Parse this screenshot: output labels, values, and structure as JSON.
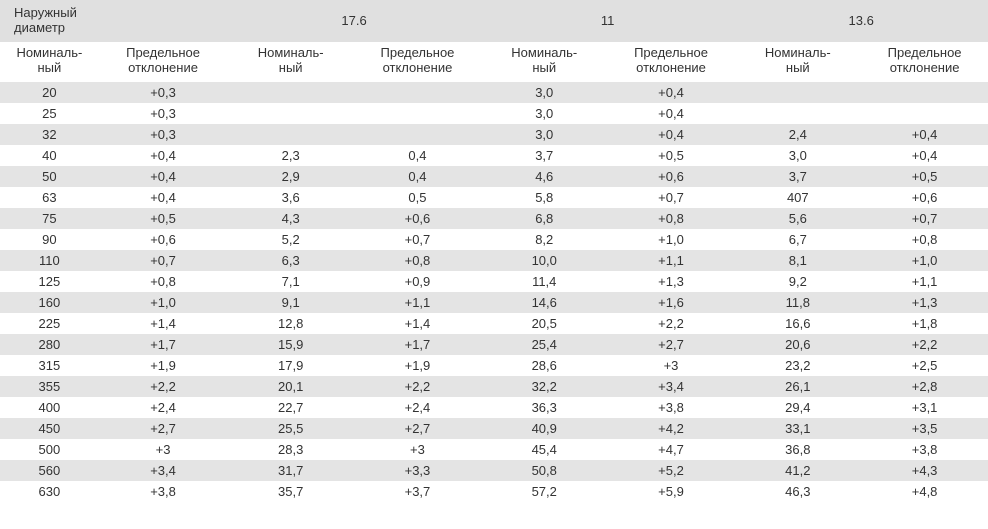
{
  "type": "table",
  "colors": {
    "header_bg": "#e0e0e0",
    "stripe_bg": "#e4e4e4",
    "row_bg": "#ffffff",
    "text": "#333333"
  },
  "fonts": {
    "family": "Arial",
    "size_pt": 10,
    "header_size_pt": 10
  },
  "header": {
    "outer_label_l1": "Наружный",
    "outer_label_l2": "диаметр",
    "groups": [
      "17.6",
      "11",
      "13.6"
    ],
    "sub_nominal_l1": "Номиналь-",
    "sub_nominal_l2": "ный",
    "sub_dev_l1": "Предельное",
    "sub_dev_l2": "отклонение"
  },
  "rows": [
    [
      "20",
      "+0,3",
      "",
      "",
      "3,0",
      "+0,4",
      "",
      ""
    ],
    [
      "25",
      "+0,3",
      "",
      "",
      "3,0",
      "+0,4",
      "",
      ""
    ],
    [
      "32",
      "+0,3",
      "",
      "",
      "3,0",
      "+0,4",
      "2,4",
      "+0,4"
    ],
    [
      "40",
      "+0,4",
      "2,3",
      "0,4",
      "3,7",
      "+0,5",
      "3,0",
      "+0,4"
    ],
    [
      "50",
      "+0,4",
      "2,9",
      "0,4",
      "4,6",
      "+0,6",
      "3,7",
      "+0,5"
    ],
    [
      "63",
      "+0,4",
      "3,6",
      "0,5",
      "5,8",
      "+0,7",
      "407",
      "+0,6"
    ],
    [
      "75",
      "+0,5",
      "4,3",
      "+0,6",
      "6,8",
      "+0,8",
      "5,6",
      "+0,7"
    ],
    [
      "90",
      "+0,6",
      "5,2",
      "+0,7",
      "8,2",
      "+1,0",
      "6,7",
      "+0,8"
    ],
    [
      "110",
      "+0,7",
      "6,3",
      "+0,8",
      "10,0",
      "+1,1",
      "8,1",
      "+1,0"
    ],
    [
      "125",
      "+0,8",
      "7,1",
      "+0,9",
      "11,4",
      "+1,3",
      "9,2",
      "+1,1"
    ],
    [
      "160",
      "+1,0",
      "9,1",
      "+1,1",
      "14,6",
      "+1,6",
      "11,8",
      "+1,3"
    ],
    [
      "225",
      "+1,4",
      "12,8",
      "+1,4",
      "20,5",
      "+2,2",
      "16,6",
      "+1,8"
    ],
    [
      "280",
      "+1,7",
      "15,9",
      "+1,7",
      "25,4",
      "+2,7",
      "20,6",
      "+2,2"
    ],
    [
      "315",
      "+1,9",
      "17,9",
      "+1,9",
      "28,6",
      "+3",
      "23,2",
      "+2,5"
    ],
    [
      "355",
      "+2,2",
      "20,1",
      "+2,2",
      "32,2",
      "+3,4",
      "26,1",
      "+2,8"
    ],
    [
      "400",
      "+2,4",
      "22,7",
      "+2,4",
      "36,3",
      "+3,8",
      "29,4",
      "+3,1"
    ],
    [
      "450",
      "+2,7",
      "25,5",
      "+2,7",
      "40,9",
      "+4,2",
      "33,1",
      "+3,5"
    ],
    [
      "500",
      "+3",
      "28,3",
      "+3",
      "45,4",
      "+4,7",
      "36,8",
      "+3,8"
    ],
    [
      "560",
      "+3,4",
      "31,7",
      "+3,3",
      "50,8",
      "+5,2",
      "41,2",
      "+4,3"
    ],
    [
      "630",
      "+3,8",
      "35,7",
      "+3,7",
      "57,2",
      "+5,9",
      "46,3",
      "+4,8"
    ]
  ]
}
